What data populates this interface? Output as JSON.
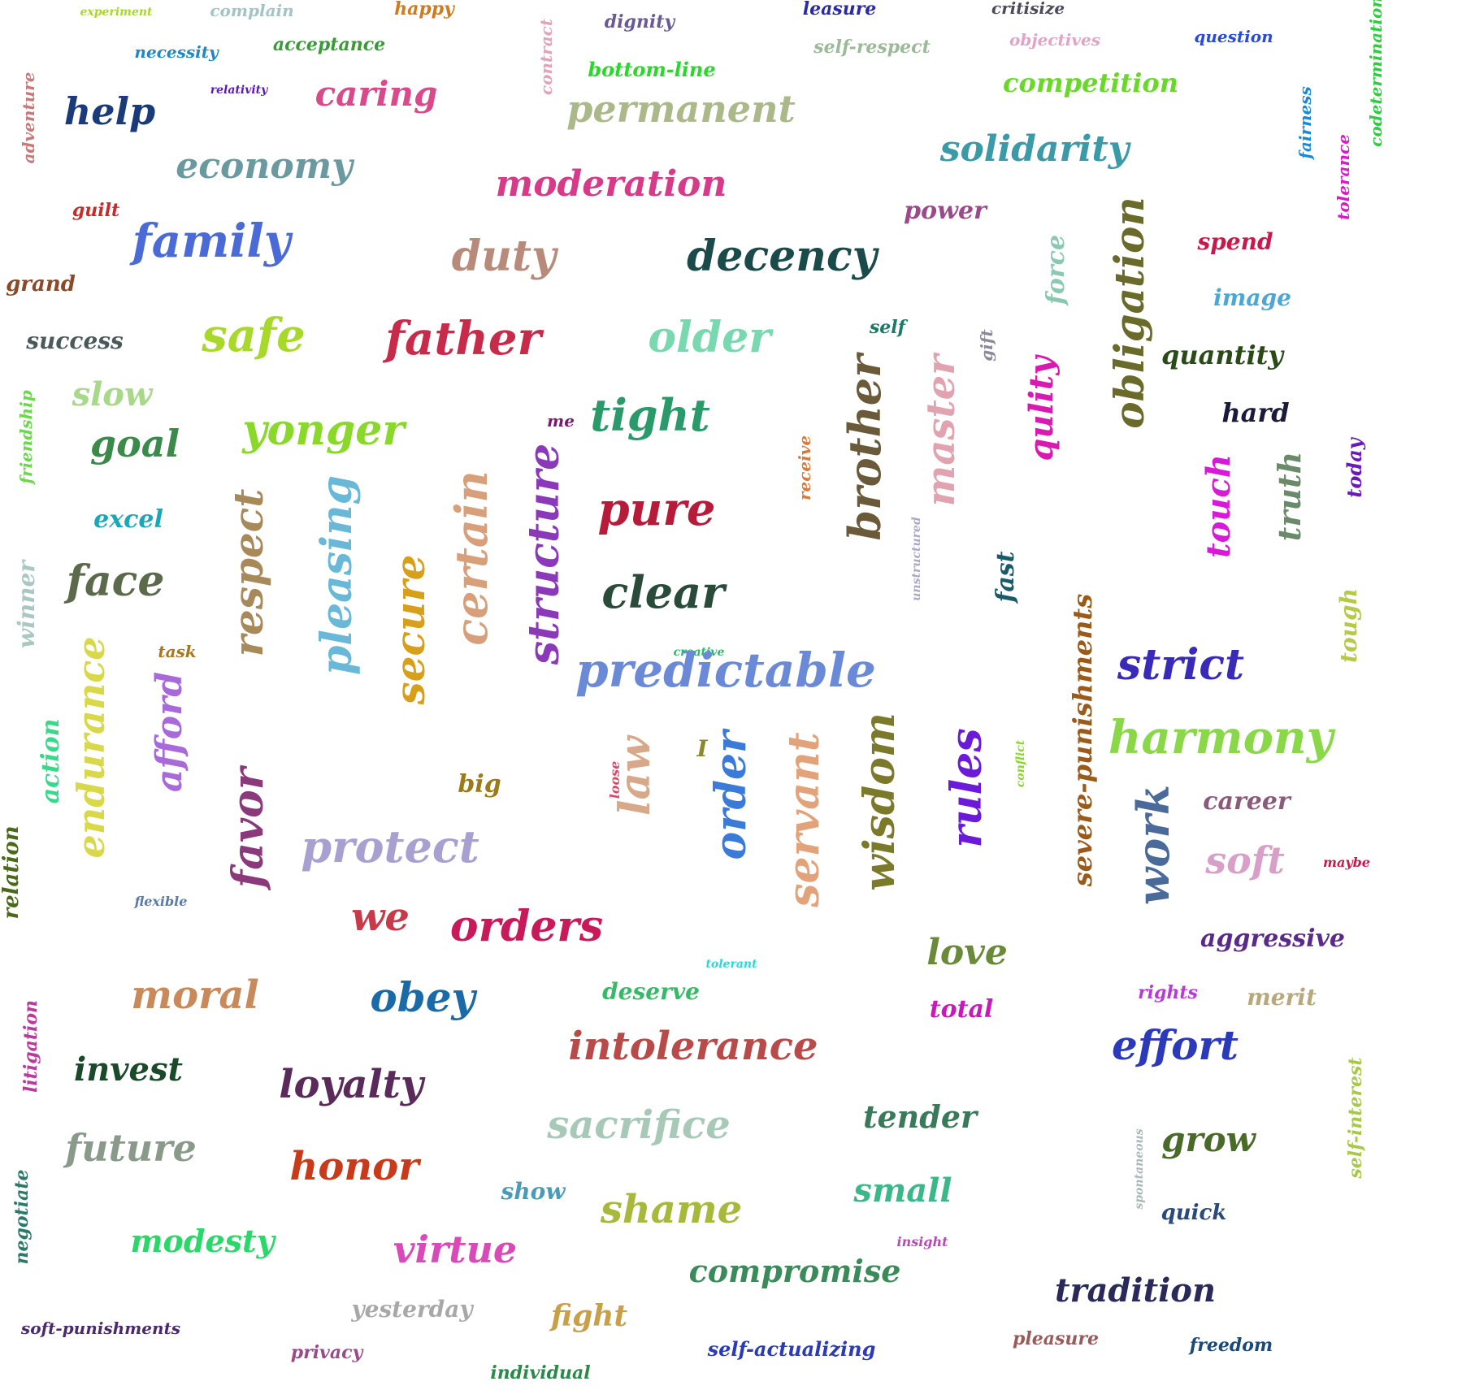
{
  "words": [
    {
      "text": "experiment",
      "color": "#a9d62e",
      "size": 1,
      "rotated": false
    },
    {
      "text": "complain",
      "color": "#a3c4c4",
      "size": 1,
      "rotated": false
    },
    {
      "text": "happy",
      "color": "#d17a1a",
      "size": 1,
      "rotated": false
    },
    {
      "text": "contract",
      "color": "#e2a3b8",
      "size": 1,
      "rotated": true
    },
    {
      "text": "dignity",
      "color": "#6b5b95",
      "size": 1,
      "rotated": false
    },
    {
      "text": "leasure",
      "color": "#2a2aa8",
      "size": 1,
      "rotated": false
    },
    {
      "text": "critisize",
      "color": "#4a4a5a",
      "size": 1,
      "rotated": false
    },
    {
      "text": "codetermination",
      "color": "#2ecc40",
      "size": 1,
      "rotated": true
    },
    {
      "text": "necessity",
      "color": "#1e88c8",
      "size": 1,
      "rotated": false
    },
    {
      "text": "acceptance",
      "color": "#3a9a3a",
      "size": 1,
      "rotated": false
    },
    {
      "text": "self-respect",
      "color": "#9aba9a",
      "size": 1,
      "rotated": false
    },
    {
      "text": "objectives",
      "color": "#e2a3c8",
      "size": 1,
      "rotated": false
    },
    {
      "text": "question",
      "color": "#2a4ad8",
      "size": 1,
      "rotated": false
    },
    {
      "text": "bottom-line",
      "color": "#2ad82a",
      "size": 1,
      "rotated": false
    },
    {
      "text": "adventure",
      "color": "#c87a7a",
      "size": 1,
      "rotated": true
    },
    {
      "text": "relativity",
      "color": "#5a1ab8",
      "size": 1,
      "rotated": false
    },
    {
      "text": "help",
      "color": "#1a3a7a",
      "size": 3,
      "rotated": false
    },
    {
      "text": "caring",
      "color": "#d84a8a",
      "size": 3,
      "rotated": false
    },
    {
      "text": "permanent",
      "color": "#aab88a",
      "size": 3,
      "rotated": false
    },
    {
      "text": "competition",
      "color": "#6ad82a",
      "size": 2,
      "rotated": false
    },
    {
      "text": "fairness",
      "color": "#1a8ad8",
      "size": 1,
      "rotated": true
    },
    {
      "text": "solidarity",
      "color": "#3a9aa8",
      "size": 3,
      "rotated": false
    },
    {
      "text": "tolerance",
      "color": "#d81ac8",
      "size": 1,
      "rotated": true
    },
    {
      "text": "economy",
      "color": "#6a9aa0",
      "size": 3,
      "rotated": false
    },
    {
      "text": "moderation",
      "color": "#d83a8a",
      "size": 3,
      "rotated": false
    },
    {
      "text": "guilt",
      "color": "#c82a2a",
      "size": 1,
      "rotated": false
    },
    {
      "text": "power",
      "color": "#9a4a8a",
      "size": 2,
      "rotated": false
    },
    {
      "text": "family",
      "color": "#4a6ad8",
      "size": 4,
      "rotated": false
    },
    {
      "text": "duty",
      "color": "#b88a7a",
      "size": 4,
      "rotated": false
    },
    {
      "text": "decency",
      "color": "#1a4a4a",
      "size": 4,
      "rotated": false
    },
    {
      "text": "force",
      "color": "#8ac8b0",
      "size": 2,
      "rotated": true
    },
    {
      "text": "obligation",
      "color": "#6a6a2a",
      "size": 4,
      "rotated": true
    },
    {
      "text": "spend",
      "color": "#c81a4a",
      "size": 2,
      "rotated": false
    },
    {
      "text": "grand",
      "color": "#8a4a2a",
      "size": 2,
      "rotated": false
    },
    {
      "text": "image",
      "color": "#4aa8d8",
      "size": 2,
      "rotated": false
    },
    {
      "text": "success",
      "color": "#4a5a5a",
      "size": 2,
      "rotated": false
    },
    {
      "text": "safe",
      "color": "#a8d82a",
      "size": 4,
      "rotated": false
    },
    {
      "text": "father",
      "color": "#c82a4a",
      "size": 4,
      "rotated": false
    },
    {
      "text": "older",
      "color": "#7ad8b0",
      "size": 4,
      "rotated": false
    },
    {
      "text": "self",
      "color": "#1a7a6a",
      "size": 1,
      "rotated": false
    },
    {
      "text": "gift",
      "color": "#8a8a9a",
      "size": 1,
      "rotated": true
    },
    {
      "text": "quantity",
      "color": "#2a4a1a",
      "size": 2,
      "rotated": false
    },
    {
      "text": "slow",
      "color": "#a8d88a",
      "size": 3,
      "rotated": false
    },
    {
      "text": "master",
      "color": "#e2a3b0",
      "size": 4,
      "rotated": true
    },
    {
      "text": "qulity",
      "color": "#d81ab0",
      "size": 3,
      "rotated": true
    },
    {
      "text": "friendship",
      "color": "#6ad84a",
      "size": 1,
      "rotated": true
    },
    {
      "text": "hard",
      "color": "#1a1a3a",
      "size": 2,
      "rotated": false
    },
    {
      "text": "me",
      "color": "#7a1a6a",
      "size": 1,
      "rotated": false
    },
    {
      "text": "tight",
      "color": "#2a9a6a",
      "size": 4,
      "rotated": false
    },
    {
      "text": "brother",
      "color": "#6a5a3a",
      "size": 4,
      "rotated": true
    },
    {
      "text": "yonger",
      "color": "#8ad82a",
      "size": 4,
      "rotated": false
    },
    {
      "text": "goal",
      "color": "#3a8a4a",
      "size": 3,
      "rotated": false
    },
    {
      "text": "receive",
      "color": "#d87a3a",
      "size": 1,
      "rotated": true
    },
    {
      "text": "touch",
      "color": "#d81ad8",
      "size": 3,
      "rotated": true
    },
    {
      "text": "today",
      "color": "#6a1ab8",
      "size": 1,
      "rotated": true
    },
    {
      "text": "truth",
      "color": "#6a8a6a",
      "size": 3,
      "rotated": true
    },
    {
      "text": "excel",
      "color": "#1aa8b8",
      "size": 2,
      "rotated": false
    },
    {
      "text": "respect",
      "color": "#a88a5a",
      "size": 4,
      "rotated": true
    },
    {
      "text": "pleasing",
      "color": "#6ab8d8",
      "size": 4,
      "rotated": true
    },
    {
      "text": "certain",
      "color": "#d8a07a",
      "size": 4,
      "rotated": true
    },
    {
      "text": "structure",
      "color": "#8a3ab8",
      "size": 4,
      "rotated": true
    },
    {
      "text": "pure",
      "color": "#b81a3a",
      "size": 4,
      "rotated": false
    },
    {
      "text": "unstructured",
      "color": "#a8a8c8",
      "size": 1,
      "rotated": true
    },
    {
      "text": "face",
      "color": "#5a6a4a",
      "size": 4,
      "rotated": false
    },
    {
      "text": "secure",
      "color": "#d8a01a",
      "size": 4,
      "rotated": true
    },
    {
      "text": "clear",
      "color": "#2a4a3a",
      "size": 4,
      "rotated": false
    },
    {
      "text": "fast",
      "color": "#1a5a6a",
      "size": 2,
      "rotated": true
    },
    {
      "text": "severe-punishments",
      "color": "#9a5a1a",
      "size": 3,
      "rotated": true
    },
    {
      "text": "winner",
      "color": "#a8c8c0",
      "size": 2,
      "rotated": true
    },
    {
      "text": "tough",
      "color": "#b8c84a",
      "size": 2,
      "rotated": true
    },
    {
      "text": "task",
      "color": "#a8781a",
      "size": 1,
      "rotated": false
    },
    {
      "text": "creative",
      "color": "#2ab86a",
      "size": 1,
      "rotated": false
    },
    {
      "text": "predictable",
      "color": "#6a8ad8",
      "size": 4,
      "rotated": false
    },
    {
      "text": "strict",
      "color": "#3a2ab8",
      "size": 4,
      "rotated": false
    },
    {
      "text": "endurance",
      "color": "#d8d84a",
      "size": 4,
      "rotated": true
    },
    {
      "text": "afford",
      "color": "#a86ad8",
      "size": 3,
      "rotated": true
    },
    {
      "text": "action",
      "color": "#3ad88a",
      "size": 2,
      "rotated": true
    },
    {
      "text": "harmony",
      "color": "#8ad84a",
      "size": 4,
      "rotated": false
    },
    {
      "text": "I",
      "color": "#8a8a2a",
      "size": 2,
      "rotated": false
    },
    {
      "text": "big",
      "color": "#9a7a1a",
      "size": 2,
      "rotated": false
    },
    {
      "text": "law",
      "color": "#d8a88a",
      "size": 4,
      "rotated": true
    },
    {
      "text": "loose",
      "color": "#d84a6a",
      "size": 1,
      "rotated": true
    },
    {
      "text": "order",
      "color": "#3a7ad8",
      "size": 4,
      "rotated": true
    },
    {
      "text": "servant",
      "color": "#e2a37a",
      "size": 4,
      "rotated": true
    },
    {
      "text": "wisdom",
      "color": "#7a7a2a",
      "size": 4,
      "rotated": true
    },
    {
      "text": "rules",
      "color": "#6a1ad8",
      "size": 4,
      "rotated": true
    },
    {
      "text": "conflict",
      "color": "#8ad82a",
      "size": 1,
      "rotated": true
    },
    {
      "text": "career",
      "color": "#8a5a7a",
      "size": 2,
      "rotated": false
    },
    {
      "text": "favor",
      "color": "#8a3a7a",
      "size": 4,
      "rotated": true
    },
    {
      "text": "protect",
      "color": "#a8a0d0",
      "size": 4,
      "rotated": false
    },
    {
      "text": "work",
      "color": "#4a6a9a",
      "size": 4,
      "rotated": true
    },
    {
      "text": "soft",
      "color": "#d8a0c8",
      "size": 4,
      "rotated": false
    },
    {
      "text": "maybe",
      "color": "#c81a4a",
      "size": 1,
      "rotated": false
    },
    {
      "text": "relation",
      "color": "#4a6a1a",
      "size": 2,
      "rotated": true
    },
    {
      "text": "flexible",
      "color": "#5a7aa8",
      "size": 1,
      "rotated": false
    },
    {
      "text": "we",
      "color": "#c83a4a",
      "size": 4,
      "rotated": false
    },
    {
      "text": "orders",
      "color": "#c81a5a",
      "size": 4,
      "rotated": false
    },
    {
      "text": "love",
      "color": "#6a8a3a",
      "size": 3,
      "rotated": false
    },
    {
      "text": "aggressive",
      "color": "#5a2a8a",
      "size": 2,
      "rotated": false
    },
    {
      "text": "tolerant",
      "color": "#2ad8d8",
      "size": 1,
      "rotated": false
    },
    {
      "text": "moral",
      "color": "#c88a5a",
      "size": 4,
      "rotated": false
    },
    {
      "text": "obey",
      "color": "#1a6aa8",
      "size": 4,
      "rotated": false
    },
    {
      "text": "deserve",
      "color": "#3ab86a",
      "size": 2,
      "rotated": false
    },
    {
      "text": "total",
      "color": "#c81ab8",
      "size": 2,
      "rotated": false
    },
    {
      "text": "rights",
      "color": "#b83ad8",
      "size": 1,
      "rotated": false
    },
    {
      "text": "merit",
      "color": "#b8a87a",
      "size": 2,
      "rotated": false
    },
    {
      "text": "litigation",
      "color": "#b83a9a",
      "size": 1,
      "rotated": true
    },
    {
      "text": "intolerance",
      "color": "#b84a4a",
      "size": 4,
      "rotated": false
    },
    {
      "text": "effort",
      "color": "#2a3ab8",
      "size": 4,
      "rotated": false
    },
    {
      "text": "invest",
      "color": "#1a4a2a",
      "size": 4,
      "rotated": false
    },
    {
      "text": "loyalty",
      "color": "#5a2a5a",
      "size": 4,
      "rotated": false
    },
    {
      "text": "tender",
      "color": "#3a7a5a",
      "size": 3,
      "rotated": false
    },
    {
      "text": "self-interest",
      "color": "#a8c84a",
      "size": 1,
      "rotated": true
    },
    {
      "text": "sacrifice",
      "color": "#a8c8b8",
      "size": 4,
      "rotated": false
    },
    {
      "text": "grow",
      "color": "#4a6a2a",
      "size": 3,
      "rotated": false
    },
    {
      "text": "future",
      "color": "#8a9a8a",
      "size": 4,
      "rotated": false
    },
    {
      "text": "spontaneous",
      "color": "#a8b8b8",
      "size": 1,
      "rotated": true
    },
    {
      "text": "honor",
      "color": "#c83a1a",
      "size": 4,
      "rotated": false
    },
    {
      "text": "show",
      "color": "#4a9ab8",
      "size": 2,
      "rotated": false
    },
    {
      "text": "small",
      "color": "#3ab88a",
      "size": 3,
      "rotated": false
    },
    {
      "text": "negotiate",
      "color": "#2a7a6a",
      "size": 1,
      "rotated": true
    },
    {
      "text": "shame",
      "color": "#a8b83a",
      "size": 4,
      "rotated": false
    },
    {
      "text": "quick",
      "color": "#2a4a7a",
      "size": 2,
      "rotated": false
    },
    {
      "text": "modesty",
      "color": "#2ad86a",
      "size": 3,
      "rotated": false
    },
    {
      "text": "virtue",
      "color": "#d84ab8",
      "size": 4,
      "rotated": false
    },
    {
      "text": "insight",
      "color": "#b84ab8",
      "size": 1,
      "rotated": false
    },
    {
      "text": "compromise",
      "color": "#3a8a5a",
      "size": 3,
      "rotated": false
    },
    {
      "text": "tradition",
      "color": "#2a2a5a",
      "size": 3,
      "rotated": false
    },
    {
      "text": "yesterday",
      "color": "#a8a8a8",
      "size": 2,
      "rotated": false
    },
    {
      "text": "fight",
      "color": "#c8a04a",
      "size": 3,
      "rotated": false
    },
    {
      "text": "soft-punishments",
      "color": "#4a2a6a",
      "size": 1,
      "rotated": false
    },
    {
      "text": "pleasure",
      "color": "#9a5a5a",
      "size": 2,
      "rotated": false
    },
    {
      "text": "freedom",
      "color": "#1a4a7a",
      "size": 2,
      "rotated": false
    },
    {
      "text": "self-actualizing",
      "color": "#2a3ab8",
      "size": 2,
      "rotated": false
    },
    {
      "text": "privacy",
      "color": "#9a4a8a",
      "size": 2,
      "rotated": false
    },
    {
      "text": "individual",
      "color": "#2a8a4a",
      "size": 2,
      "rotated": false
    }
  ]
}
